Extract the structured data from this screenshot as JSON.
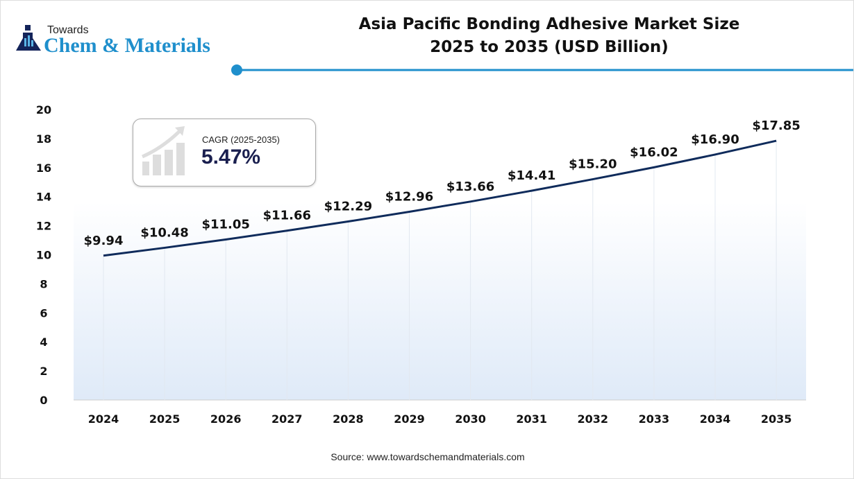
{
  "logo": {
    "line1": "Towards",
    "line2": "Chem & Materials"
  },
  "title_line1": "Asia Pacific Bonding Adhesive Market Size",
  "title_line2": "2025 to 2035 (USD Billion)",
  "cagr": {
    "label": "CAGR (2025-2035)",
    "value": "5.47%",
    "icon": "growth-chart-icon"
  },
  "source": "Source: www.towardschemandmaterials.com",
  "colors": {
    "line": "#0f2b5b",
    "accent": "#1f8fcc",
    "fill": "#e6f0fb"
  },
  "chart_data": {
    "type": "line",
    "title": "Asia Pacific Bonding Adhesive Market Size 2025 to 2035 (USD Billion)",
    "categories": [
      "2024",
      "2025",
      "2026",
      "2027",
      "2028",
      "2029",
      "2030",
      "2031",
      "2032",
      "2033",
      "2034",
      "2035"
    ],
    "values": [
      9.94,
      10.48,
      11.05,
      11.66,
      12.29,
      12.96,
      13.66,
      14.41,
      15.2,
      16.02,
      16.9,
      17.85
    ],
    "data_labels": [
      "$9.94",
      "$10.48",
      "$11.05",
      "$11.66",
      "$12.29",
      "$12.96",
      "$13.66",
      "$14.41",
      "$15.20",
      "$16.02",
      "$16.90",
      "$17.85"
    ],
    "yticks": [
      0,
      2,
      4,
      6,
      8,
      10,
      12,
      14,
      16,
      18,
      20
    ],
    "ylim": [
      0,
      20
    ],
    "grid": "vertical drop lines",
    "legend": "none"
  }
}
